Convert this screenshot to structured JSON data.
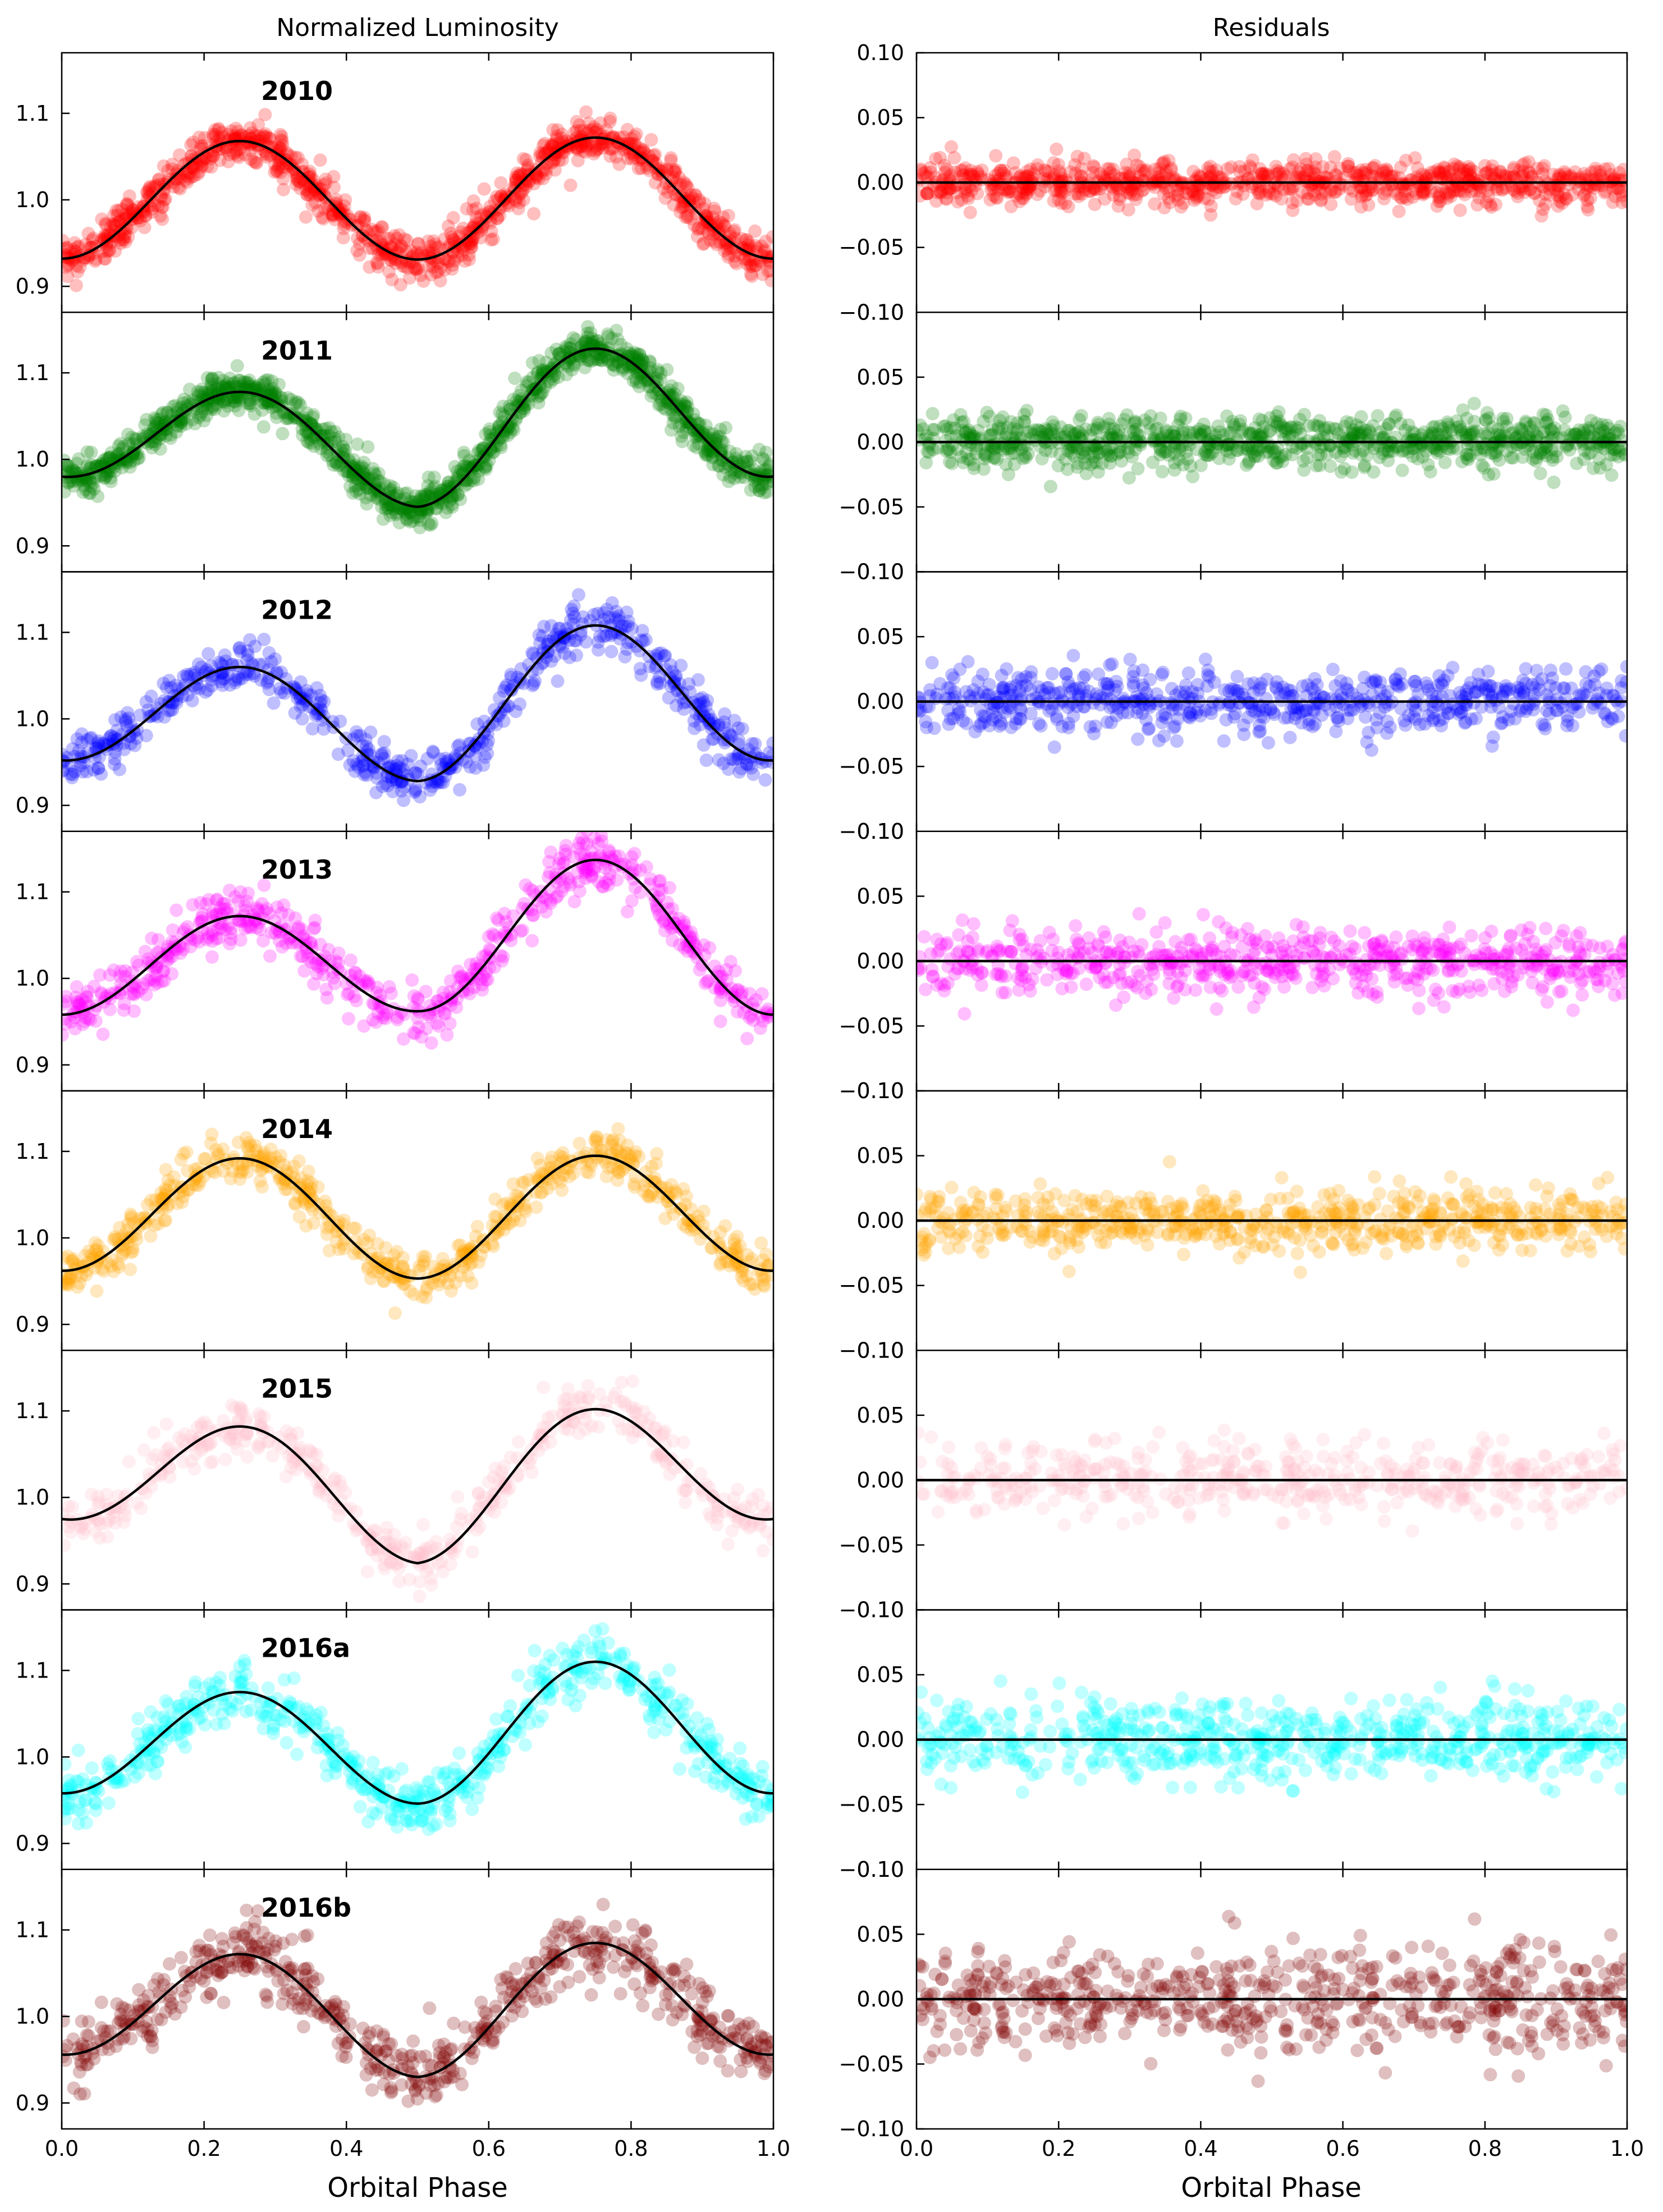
{
  "figure": {
    "left_title": "Normalized Luminosity",
    "right_title": "Residuals",
    "xlabel_left": "Orbital Phase",
    "xlabel_right": "Orbital Phase"
  },
  "chart_data": [
    {
      "type": "scatter",
      "column": "Normalized Luminosity",
      "xlabel": "Orbital Phase",
      "xlim": [
        0.0,
        1.0
      ],
      "ylim": [
        0.87,
        1.17
      ],
      "x_ticks": [
        "0.0",
        "0.2",
        "0.4",
        "0.6",
        "0.8",
        "1.0"
      ],
      "y_ticks": [
        "0.9",
        "1.0",
        "1.1"
      ],
      "marker_alpha": 0.25,
      "line_color": "#000000",
      "panels": [
        {
          "label": "2010",
          "color": "#ff0000",
          "min1": 0.932,
          "max1": 1.068,
          "min2": 0.931,
          "max2": 1.072,
          "scatter": 0.012,
          "n_points": 1100,
          "fit_phase": [
            0.0,
            0.25,
            0.5,
            0.75,
            1.0
          ],
          "fit_flux": [
            0.935,
            1.068,
            0.931,
            1.072,
            0.935
          ]
        },
        {
          "label": "2011",
          "color": "#008000",
          "min1": 0.98,
          "max1": 1.078,
          "min2": 0.945,
          "max2": 1.128,
          "scatter": 0.011,
          "n_points": 1300,
          "fit_phase": [
            0.0,
            0.25,
            0.5,
            0.75,
            1.0
          ],
          "fit_flux": [
            0.982,
            1.078,
            0.945,
            1.128,
            0.982
          ]
        },
        {
          "label": "2012",
          "color": "#0000ff",
          "min1": 0.952,
          "max1": 1.06,
          "min2": 0.928,
          "max2": 1.108,
          "scatter": 0.014,
          "n_points": 650,
          "fit_phase": [
            0.0,
            0.25,
            0.5,
            0.75,
            1.0
          ],
          "fit_flux": [
            0.952,
            1.06,
            0.928,
            1.108,
            0.952
          ]
        },
        {
          "label": "2013",
          "color": "#ff00ff",
          "min1": 0.958,
          "max1": 1.072,
          "min2": 0.962,
          "max2": 1.137,
          "scatter": 0.015,
          "n_points": 650,
          "fit_phase": [
            0.0,
            0.25,
            0.5,
            0.75,
            1.0
          ],
          "fit_flux": [
            0.958,
            1.072,
            0.962,
            1.137,
            0.958
          ]
        },
        {
          "label": "2014",
          "color": "#ffa500",
          "min1": 0.962,
          "max1": 1.092,
          "min2": 0.953,
          "max2": 1.095,
          "scatter": 0.013,
          "n_points": 650,
          "fit_phase": [
            0.0,
            0.25,
            0.5,
            0.75,
            1.0
          ],
          "fit_flux": [
            0.962,
            1.092,
            0.953,
            1.095,
            0.962
          ]
        },
        {
          "label": "2015",
          "color": "#ffc0cb",
          "min1": 0.975,
          "max1": 1.082,
          "min2": 0.924,
          "max2": 1.102,
          "scatter": 0.015,
          "n_points": 500,
          "fit_phase": [
            0.0,
            0.25,
            0.5,
            0.75,
            1.0
          ],
          "fit_flux": [
            0.975,
            1.082,
            0.924,
            1.102,
            0.975
          ]
        },
        {
          "label": "2016a",
          "color": "#00ffff",
          "min1": 0.958,
          "max1": 1.075,
          "min2": 0.946,
          "max2": 1.11,
          "scatter": 0.017,
          "n_points": 650,
          "fit_phase": [
            0.0,
            0.25,
            0.5,
            0.75,
            1.0
          ],
          "fit_flux": [
            0.958,
            1.075,
            0.946,
            1.11,
            0.958
          ]
        },
        {
          "label": "2016b",
          "color": "#800000",
          "min1": 0.956,
          "max1": 1.072,
          "min2": 0.93,
          "max2": 1.085,
          "scatter": 0.02,
          "n_points": 650,
          "fit_phase": [
            0.0,
            0.25,
            0.5,
            0.75,
            1.0
          ],
          "fit_flux": [
            0.956,
            1.072,
            0.93,
            1.085,
            0.956
          ]
        }
      ]
    },
    {
      "type": "scatter",
      "column": "Residuals",
      "xlabel": "Orbital Phase",
      "xlim": [
        0.0,
        1.0
      ],
      "ylim": [
        -0.1,
        0.1
      ],
      "x_ticks": [
        "0.0",
        "0.2",
        "0.4",
        "0.6",
        "0.8",
        "1.0"
      ],
      "y_ticks": [
        "0.10",
        "0.05",
        "0.00",
        "−0.05",
        "−0.10"
      ],
      "marker_alpha": 0.25,
      "zero_line": 0.0,
      "panels": [
        {
          "label": "2010",
          "color": "#ff0000",
          "scatter": 0.008
        },
        {
          "label": "2011",
          "color": "#008000",
          "scatter": 0.01
        },
        {
          "label": "2012",
          "color": "#0000ff",
          "scatter": 0.012
        },
        {
          "label": "2013",
          "color": "#ff00ff",
          "scatter": 0.013
        },
        {
          "label": "2014",
          "color": "#ffa500",
          "scatter": 0.012
        },
        {
          "label": "2015",
          "color": "#ffc0cb",
          "scatter": 0.013
        },
        {
          "label": "2016a",
          "color": "#00ffff",
          "scatter": 0.016
        },
        {
          "label": "2016b",
          "color": "#800000",
          "scatter": 0.02
        }
      ]
    }
  ]
}
